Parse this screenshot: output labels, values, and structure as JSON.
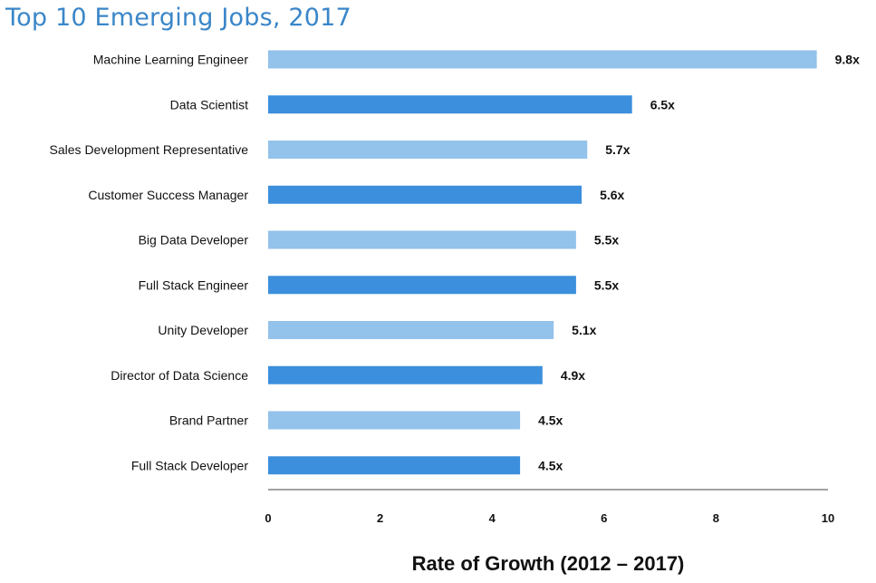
{
  "page": {
    "title": "Top 10 Emerging Jobs, 2017"
  },
  "colors": {
    "title": "#3a86c8",
    "bar_light": "#93c2ea",
    "bar_dark": "#3c8fdc",
    "axis": "#444444"
  },
  "chart_data": {
    "type": "bar",
    "orientation": "horizontal",
    "title": "Top 10 Emerging Jobs, 2017",
    "xlabel": "Rate of Growth (2012 – 2017)",
    "ylabel": "",
    "xlim": [
      0,
      10
    ],
    "xticks": [
      0,
      2,
      4,
      6,
      8,
      10
    ],
    "categories": [
      "Machine Learning Engineer",
      "Data Scientist",
      "Sales Development Representative",
      "Customer Success Manager",
      "Big Data Developer",
      "Full Stack Engineer",
      "Unity Developer",
      "Director of Data Science",
      "Brand Partner",
      "Full Stack Developer"
    ],
    "values": [
      9.8,
      6.5,
      5.7,
      5.6,
      5.5,
      5.5,
      5.1,
      4.9,
      4.5,
      4.5
    ],
    "value_labels": [
      "9.8x",
      "6.5x",
      "5.7x",
      "5.6x",
      "5.5x",
      "5.5x",
      "5.1x",
      "4.9x",
      "4.5x",
      "4.5x"
    ],
    "grid": false,
    "legend": "none"
  }
}
